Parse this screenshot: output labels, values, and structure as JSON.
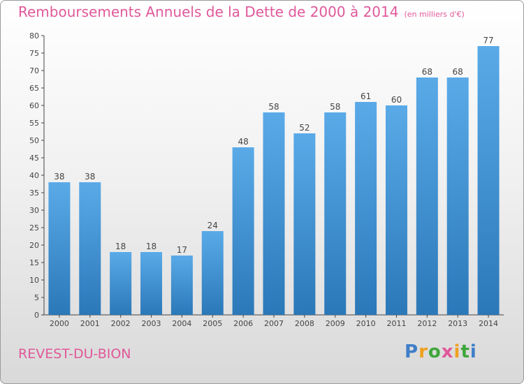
{
  "title": "Remboursements Annuels de la Dette de 2000 à 2014",
  "subtitle": "(en milliers d'€)",
  "place": "REVEST-DU-BION",
  "logo": {
    "text": "Proxiti",
    "colors": [
      "#3f7ec8",
      "#f0a020",
      "#3fa63c",
      "#e0589a"
    ]
  },
  "colors": {
    "title": "#e0589a",
    "bar_light": "#5aaae8",
    "bar_dark": "#2b78b8"
  },
  "chart_data": {
    "type": "bar",
    "title": "Remboursements Annuels de la Dette de 2000 à 2014",
    "categories": [
      "2000",
      "2001",
      "2002",
      "2003",
      "2004",
      "2005",
      "2006",
      "2007",
      "2008",
      "2009",
      "2010",
      "2011",
      "2012",
      "2013",
      "2014"
    ],
    "values": [
      38,
      38,
      18,
      18,
      17,
      24,
      48,
      58,
      52,
      58,
      61,
      60,
      68,
      68,
      77
    ],
    "ylim": [
      0,
      80
    ],
    "yticks": [
      0,
      5,
      10,
      15,
      20,
      25,
      30,
      35,
      40,
      45,
      50,
      55,
      60,
      65,
      70,
      75,
      80
    ],
    "grid": false,
    "legend": "none"
  }
}
